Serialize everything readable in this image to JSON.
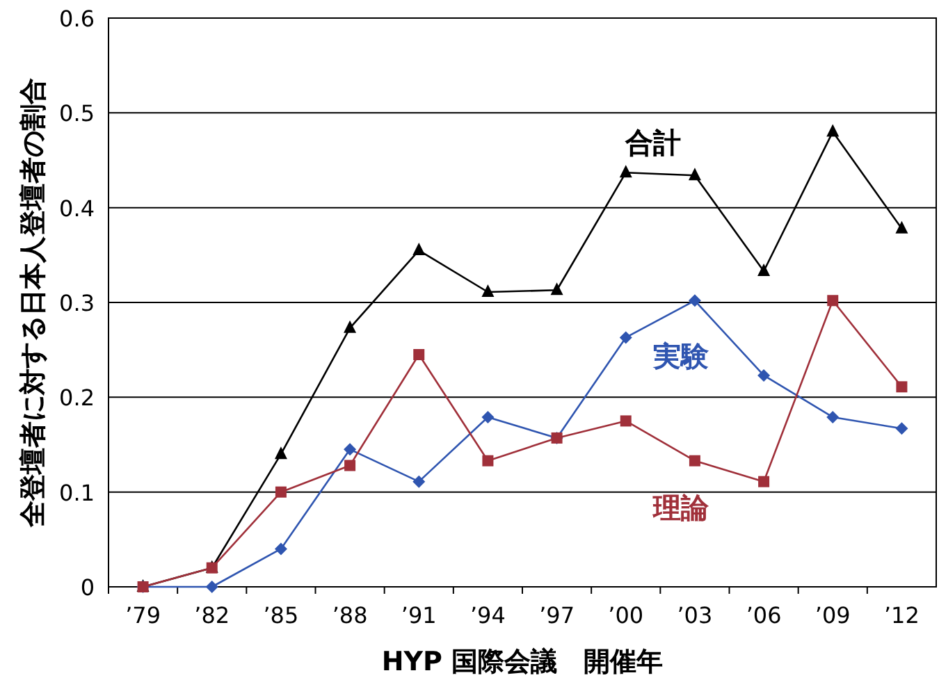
{
  "chart_data": {
    "type": "line",
    "xlabel": "HYP 国際会議　開催年",
    "ylabel": "全登壇者に対する日本人登壇者の割合",
    "categories": [
      "’79",
      "’82",
      "’85",
      "’88",
      "’91",
      "’94",
      "’97",
      "’00",
      "’03",
      "’06",
      "’09",
      "’12"
    ],
    "series": [
      {
        "name": "合計",
        "color": "#000000",
        "marker": "triangle",
        "values": [
          0,
          0.02,
          0.14,
          0.273,
          0.355,
          0.311,
          0.313,
          0.437,
          0.434,
          0.333,
          0.48,
          0.378
        ]
      },
      {
        "name": "実験",
        "color": "#2f55b0",
        "marker": "diamond",
        "values": [
          0,
          0,
          0.04,
          0.145,
          0.111,
          0.179,
          0.157,
          0.263,
          0.302,
          0.223,
          0.179,
          0.167
        ]
      },
      {
        "name": "理論",
        "color": "#a0303a",
        "marker": "square",
        "values": [
          0,
          0.02,
          0.1,
          0.128,
          0.245,
          0.133,
          0.157,
          0.175,
          0.133,
          0.111,
          0.302,
          0.211
        ]
      }
    ],
    "ylim": [
      0,
      0.6
    ],
    "yticks": [
      0,
      0.1,
      0.2,
      0.3,
      0.4,
      0.5,
      0.6
    ],
    "grid": "y"
  }
}
